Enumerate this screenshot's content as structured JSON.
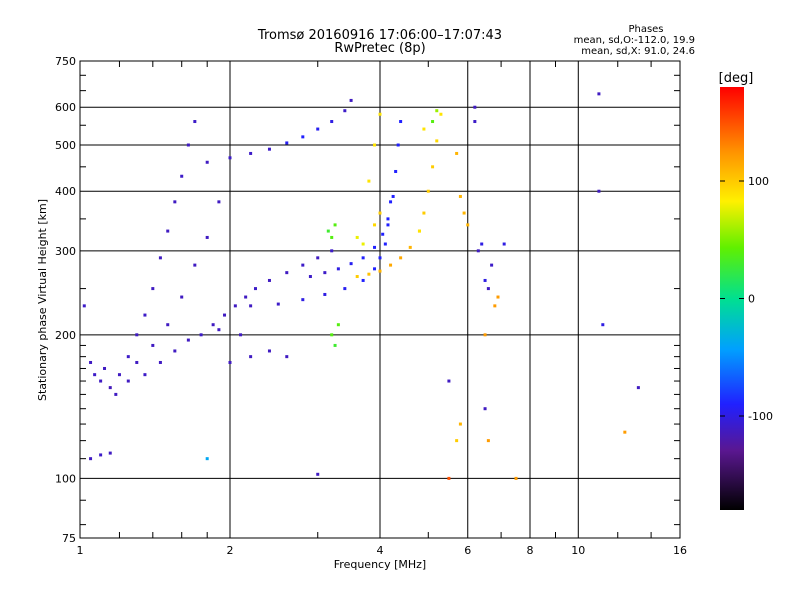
{
  "chart_data": {
    "type": "scatter",
    "title": "Tromsø 20160916 17:06:00–17:07:43",
    "subtitle": "RwPretec (8p)",
    "xlabel": "Frequency [MHz]",
    "ylabel": "Stationary phase Virtual Height [km]",
    "x_scale": "log",
    "y_scale": "log",
    "xlim": [
      1,
      16
    ],
    "ylim": [
      75,
      750
    ],
    "x_ticks": [
      "1",
      "2",
      "4",
      "6",
      "8",
      "10",
      "16"
    ],
    "y_ticks": [
      "75",
      "100",
      "200",
      "300",
      "400",
      "500",
      "600",
      "750"
    ],
    "x_ticks_values": [
      1,
      2,
      4,
      6,
      8,
      10,
      16
    ],
    "y_ticks_values": [
      75,
      100,
      200,
      300,
      400,
      500,
      600,
      750
    ],
    "grid": true,
    "colorbar": {
      "label": "[deg]",
      "range": [
        -180,
        180
      ],
      "ticks": [
        "100",
        "0",
        "-100"
      ],
      "ticks_values": [
        100,
        0,
        -100
      ]
    },
    "stats": {
      "title": "Phases",
      "lines": [
        "mean, sd,O:-112.0, 19.9",
        "mean, sd,X:  91.0, 24.6"
      ]
    },
    "series": [
      {
        "points": [
          [
            1.02,
            230,
            -110
          ],
          [
            1.05,
            175,
            -112
          ],
          [
            1.07,
            165,
            -110
          ],
          [
            1.1,
            160,
            -112
          ],
          [
            1.12,
            170,
            -112
          ],
          [
            1.15,
            155,
            -115
          ],
          [
            1.18,
            150,
            -112
          ],
          [
            1.2,
            165,
            -112
          ],
          [
            1.25,
            180,
            -110
          ],
          [
            1.3,
            200,
            -112
          ],
          [
            1.35,
            220,
            -110
          ],
          [
            1.4,
            250,
            -112
          ],
          [
            1.45,
            290,
            -112
          ],
          [
            1.5,
            330,
            -112
          ],
          [
            1.55,
            380,
            -112
          ],
          [
            1.6,
            430,
            -110
          ],
          [
            1.65,
            500,
            -112
          ],
          [
            1.7,
            560,
            -110
          ],
          [
            1.8,
            460,
            -112
          ],
          [
            1.9,
            380,
            -112
          ],
          [
            1.8,
            320,
            -112
          ],
          [
            1.7,
            280,
            -112
          ],
          [
            1.6,
            240,
            -112
          ],
          [
            1.5,
            210,
            -112
          ],
          [
            1.4,
            190,
            -112
          ],
          [
            1.3,
            175,
            -112
          ],
          [
            1.25,
            160,
            -112
          ],
          [
            1.35,
            165,
            -110
          ],
          [
            1.45,
            175,
            -112
          ],
          [
            1.55,
            185,
            -112
          ],
          [
            1.65,
            195,
            -112
          ],
          [
            1.75,
            200,
            -110
          ],
          [
            1.85,
            210,
            -112
          ],
          [
            1.95,
            220,
            -112
          ],
          [
            2.05,
            230,
            -112
          ],
          [
            2.15,
            240,
            -112
          ],
          [
            2.25,
            250,
            -110
          ],
          [
            2.4,
            260,
            -112
          ],
          [
            2.6,
            270,
            -112
          ],
          [
            2.8,
            280,
            -110
          ],
          [
            3.0,
            290,
            -112
          ],
          [
            3.2,
            300,
            -110
          ],
          [
            2.9,
            265,
            -110
          ],
          [
            3.1,
            270,
            -110
          ],
          [
            3.3,
            275,
            -100
          ],
          [
            3.5,
            282,
            -95
          ],
          [
            3.7,
            290,
            -90
          ],
          [
            3.9,
            305,
            -90
          ],
          [
            4.05,
            325,
            -90
          ],
          [
            4.15,
            350,
            -90
          ],
          [
            4.25,
            390,
            -90
          ],
          [
            4.3,
            440,
            -90
          ],
          [
            4.35,
            500,
            -90
          ],
          [
            4.4,
            560,
            -90
          ],
          [
            2.2,
            230,
            -112
          ],
          [
            2.5,
            232,
            -110
          ],
          [
            2.8,
            237,
            -100
          ],
          [
            3.1,
            243,
            -100
          ],
          [
            3.4,
            250,
            -95
          ],
          [
            3.7,
            260,
            -90
          ],
          [
            3.9,
            275,
            -90
          ],
          [
            4.0,
            290,
            -90
          ],
          [
            4.1,
            310,
            -90
          ],
          [
            4.15,
            340,
            -90
          ],
          [
            4.2,
            380,
            -90
          ],
          [
            2.0,
            470,
            -110
          ],
          [
            2.2,
            480,
            -110
          ],
          [
            2.4,
            490,
            -110
          ],
          [
            2.6,
            505,
            -95
          ],
          [
            2.8,
            520,
            -90
          ],
          [
            3.0,
            540,
            -95
          ],
          [
            3.2,
            560,
            -100
          ],
          [
            3.4,
            590,
            -110
          ],
          [
            3.5,
            620,
            -112
          ],
          [
            2.0,
            175,
            -112
          ],
          [
            2.2,
            180,
            -112
          ],
          [
            2.4,
            185,
            -112
          ],
          [
            2.6,
            180,
            -112
          ],
          [
            1.9,
            205,
            -112
          ],
          [
            2.1,
            200,
            -112
          ],
          [
            1.05,
            110,
            -112
          ],
          [
            1.1,
            112,
            -110
          ],
          [
            1.15,
            113,
            -112
          ],
          [
            1.8,
            110,
            -40
          ],
          [
            3.0,
            102,
            -112
          ],
          [
            3.2,
            320,
            40
          ],
          [
            3.15,
            330,
            30
          ],
          [
            3.25,
            340,
            40
          ],
          [
            3.2,
            200,
            40
          ],
          [
            3.25,
            190,
            30
          ],
          [
            3.3,
            210,
            40
          ],
          [
            3.6,
            320,
            80
          ],
          [
            3.7,
            310,
            80
          ],
          [
            3.8,
            420,
            90
          ],
          [
            3.9,
            500,
            90
          ],
          [
            4.0,
            580,
            90
          ],
          [
            3.6,
            265,
            100
          ],
          [
            3.8,
            268,
            105
          ],
          [
            4.0,
            272,
            110
          ],
          [
            4.2,
            280,
            115
          ],
          [
            4.4,
            290,
            115
          ],
          [
            4.6,
            305,
            110
          ],
          [
            4.8,
            330,
            105
          ],
          [
            4.9,
            360,
            100
          ],
          [
            5.0,
            400,
            100
          ],
          [
            5.1,
            450,
            100
          ],
          [
            5.2,
            510,
            95
          ],
          [
            5.3,
            580,
            90
          ],
          [
            4.8,
            330,
            90
          ],
          [
            4.9,
            540,
            90
          ],
          [
            5.1,
            560,
            40
          ],
          [
            5.2,
            590,
            60
          ],
          [
            4.0,
            360,
            100
          ],
          [
            3.9,
            340,
            95
          ],
          [
            6.2,
            600,
            -112
          ],
          [
            6.2,
            560,
            -110
          ],
          [
            6.4,
            310,
            -100
          ],
          [
            6.5,
            260,
            -100
          ],
          [
            6.6,
            250,
            -112
          ],
          [
            6.7,
            280,
            -110
          ],
          [
            7.1,
            310,
            -100
          ],
          [
            6.8,
            230,
            120
          ],
          [
            6.9,
            240,
            120
          ],
          [
            11.0,
            640,
            -112
          ],
          [
            11.0,
            400,
            -112
          ],
          [
            11.2,
            210,
            -100
          ],
          [
            12.4,
            125,
            120
          ],
          [
            13.2,
            155,
            -112
          ],
          [
            5.8,
            390,
            110
          ],
          [
            5.9,
            360,
            110
          ],
          [
            6.0,
            340,
            110
          ],
          [
            5.7,
            480,
            110
          ],
          [
            5.7,
            120,
            100
          ],
          [
            5.8,
            130,
            110
          ],
          [
            6.3,
            300,
            -112
          ],
          [
            6.5,
            200,
            120
          ],
          [
            6.5,
            140,
            -112
          ],
          [
            6.6,
            120,
            120
          ],
          [
            5.5,
            160,
            -112
          ],
          [
            5.5,
            100,
            150
          ],
          [
            7.5,
            100,
            120
          ]
        ]
      }
    ]
  }
}
